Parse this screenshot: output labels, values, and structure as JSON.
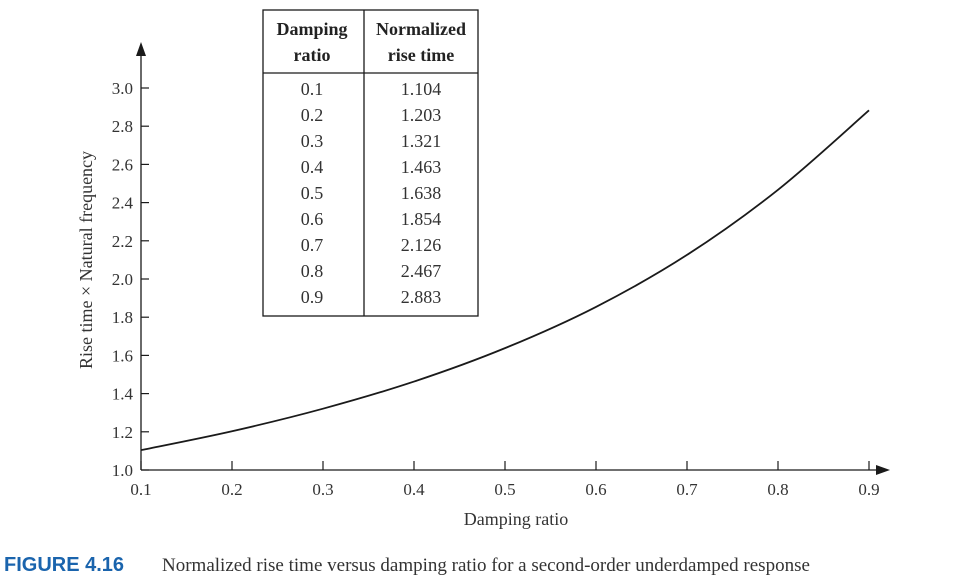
{
  "chart_data": {
    "type": "line",
    "xlabel": "Damping ratio",
    "ylabel": "Rise time × Natural frequency",
    "xlim": [
      0.1,
      0.9
    ],
    "ylim": [
      1.0,
      3.0
    ],
    "x_ticks": [
      "0.1",
      "0.2",
      "0.3",
      "0.4",
      "0.5",
      "0.6",
      "0.7",
      "0.8",
      "0.9"
    ],
    "y_ticks": [
      "1.0",
      "1.2",
      "1.4",
      "1.6",
      "1.8",
      "2.0",
      "2.2",
      "2.4",
      "2.6",
      "2.8",
      "3.0"
    ],
    "series": [
      {
        "x": [
          0.1,
          0.2,
          0.3,
          0.4,
          0.5,
          0.6,
          0.7,
          0.8,
          0.9
        ],
        "y": [
          1.104,
          1.203,
          1.321,
          1.463,
          1.638,
          1.854,
          2.126,
          2.467,
          2.883
        ]
      }
    ],
    "grid": false,
    "color": "#1a1a1a",
    "table": {
      "headers": [
        [
          "Damping",
          "ratio"
        ],
        [
          "Normalized",
          "rise time"
        ]
      ],
      "rows": [
        [
          "0.1",
          "1.104"
        ],
        [
          "0.2",
          "1.203"
        ],
        [
          "0.3",
          "1.321"
        ],
        [
          "0.4",
          "1.463"
        ],
        [
          "0.5",
          "1.638"
        ],
        [
          "0.6",
          "1.854"
        ],
        [
          "0.7",
          "2.126"
        ],
        [
          "0.8",
          "2.467"
        ],
        [
          "0.9",
          "2.883"
        ]
      ]
    }
  },
  "caption": {
    "label": "FIGURE 4.16",
    "text": "Normalized rise time versus damping ratio for a second-order underdamped response",
    "label_color": "#1a64ad"
  }
}
